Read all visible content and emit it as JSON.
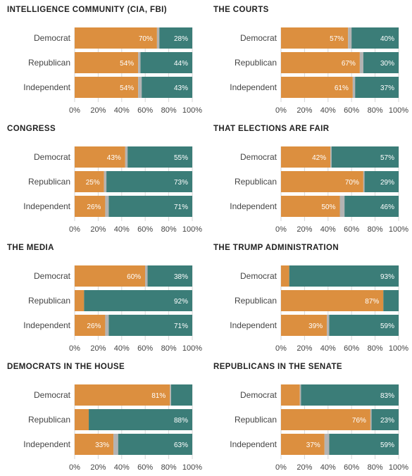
{
  "colors": {
    "orange": "#dc8f3f",
    "teal": "#3b7d78",
    "gray": "#b3b3b3",
    "grid": "#d6d6d6",
    "title": "#222222",
    "label": "#444444"
  },
  "chart_data": [
    {
      "type": "bar",
      "title": "INTELLIGENCE COMMUNITY (CIA, FBI)",
      "categories": [
        "Democrat",
        "Republican",
        "Independent"
      ],
      "series": [
        {
          "values": [
            70,
            54,
            54
          ]
        },
        {
          "values": [
            28,
            44,
            43
          ]
        }
      ],
      "xlim": [
        0,
        100
      ],
      "xticks": [
        "0%",
        "20%",
        "40%",
        "60%",
        "80%",
        "100%"
      ]
    },
    {
      "type": "bar",
      "title": "THE COURTS",
      "categories": [
        "Democrat",
        "Republican",
        "Independent"
      ],
      "series": [
        {
          "values": [
            57,
            67,
            61
          ]
        },
        {
          "values": [
            40,
            30,
            37
          ]
        }
      ],
      "xlim": [
        0,
        100
      ],
      "xticks": [
        "0%",
        "20%",
        "40%",
        "60%",
        "80%",
        "100%"
      ]
    },
    {
      "type": "bar",
      "title": "CONGRESS",
      "categories": [
        "Democrat",
        "Republican",
        "Independent"
      ],
      "series": [
        {
          "values": [
            43,
            25,
            26
          ]
        },
        {
          "values": [
            55,
            73,
            71
          ]
        }
      ],
      "xlim": [
        0,
        100
      ],
      "xticks": [
        "0%",
        "20%",
        "40%",
        "60%",
        "80%",
        "100%"
      ]
    },
    {
      "type": "bar",
      "title": "THAT ELECTIONS ARE FAIR",
      "categories": [
        "Democrat",
        "Republican",
        "Independent"
      ],
      "series": [
        {
          "values": [
            42,
            70,
            50
          ]
        },
        {
          "values": [
            57,
            29,
            46
          ]
        }
      ],
      "xlim": [
        0,
        100
      ],
      "xticks": [
        "0%",
        "20%",
        "40%",
        "60%",
        "80%",
        "100%"
      ]
    },
    {
      "type": "bar",
      "title": "THE MEDIA",
      "categories": [
        "Democrat",
        "Republican",
        "Independent"
      ],
      "series": [
        {
          "values": [
            60,
            8,
            26
          ]
        },
        {
          "values": [
            38,
            92,
            71
          ]
        }
      ],
      "hide_labels": [
        [
          false,
          true,
          false
        ],
        [
          false,
          false,
          false
        ]
      ],
      "xlim": [
        0,
        100
      ],
      "xticks": [
        "0%",
        "20%",
        "40%",
        "60%",
        "80%",
        "100%"
      ]
    },
    {
      "type": "bar",
      "title": "THE TRUMP ADMINISTRATION",
      "categories": [
        "Democrat",
        "Republican",
        "Independent"
      ],
      "series": [
        {
          "values": [
            7,
            87,
            39
          ]
        },
        {
          "values": [
            93,
            13,
            59
          ]
        }
      ],
      "hide_labels": [
        [
          true,
          false,
          false
        ],
        [
          false,
          true,
          false
        ]
      ],
      "xlim": [
        0,
        100
      ],
      "xticks": [
        "0%",
        "20%",
        "40%",
        "60%",
        "80%",
        "100%"
      ]
    },
    {
      "type": "bar",
      "title": "DEMOCRATS IN THE HOUSE",
      "categories": [
        "Democrat",
        "Republican",
        "Independent"
      ],
      "series": [
        {
          "values": [
            81,
            12,
            33
          ]
        },
        {
          "values": [
            18,
            88,
            63
          ]
        }
      ],
      "hide_labels": [
        [
          false,
          true,
          false
        ],
        [
          true,
          false,
          false
        ]
      ],
      "xlim": [
        0,
        100
      ],
      "xticks": [
        "0%",
        "20%",
        "40%",
        "60%",
        "80%",
        "100%"
      ]
    },
    {
      "type": "bar",
      "title": "REPUBLICANS IN THE SENATE",
      "categories": [
        "Democrat",
        "Republican",
        "Independent"
      ],
      "series": [
        {
          "values": [
            16,
            76,
            37
          ]
        },
        {
          "values": [
            83,
            23,
            59
          ]
        }
      ],
      "hide_labels": [
        [
          true,
          false,
          false
        ],
        [
          false,
          false,
          false
        ]
      ],
      "xlim": [
        0,
        100
      ],
      "xticks": [
        "0%",
        "20%",
        "40%",
        "60%",
        "80%",
        "100%"
      ]
    }
  ]
}
